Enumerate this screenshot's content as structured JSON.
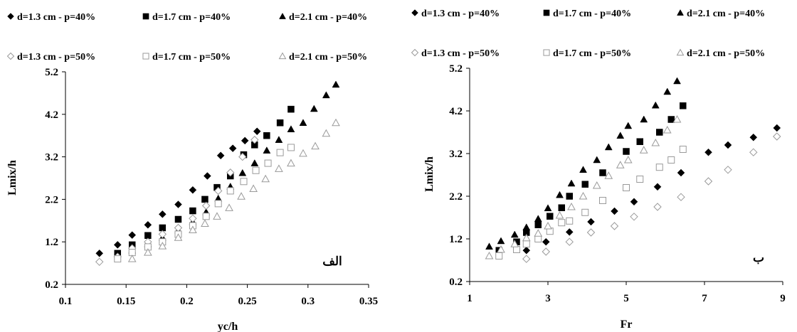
{
  "chart_data": [
    {
      "type": "scatter",
      "title": "",
      "panel_label": "الف",
      "xlabel": "yc/h",
      "ylabel": "Lmix/h",
      "xlim": [
        0.1,
        0.35
      ],
      "ylim": [
        0.2,
        5.2
      ],
      "xticks": [
        "0.1",
        "0.15",
        "0.2",
        "0.25",
        "0.3",
        "0.35"
      ],
      "yticks": [
        "0.2",
        "1.2",
        "2.2",
        "3.2",
        "4.2",
        "5.2"
      ],
      "grid": false,
      "legend": "top",
      "series": [
        {
          "name": "d=1.3 cm - p=40%",
          "marker": "diamond",
          "fill": "filled",
          "points": [
            [
              0.128,
              0.93
            ],
            [
              0.143,
              1.13
            ],
            [
              0.155,
              1.36
            ],
            [
              0.168,
              1.6
            ],
            [
              0.18,
              1.85
            ],
            [
              0.193,
              2.08
            ],
            [
              0.205,
              2.42
            ],
            [
              0.217,
              2.75
            ],
            [
              0.228,
              3.23
            ],
            [
              0.238,
              3.4
            ],
            [
              0.248,
              3.58
            ],
            [
              0.258,
              3.8
            ]
          ]
        },
        {
          "name": "d=1.7 cm - p=40%",
          "marker": "square",
          "fill": "filled",
          "points": [
            [
              0.143,
              0.93
            ],
            [
              0.155,
              1.13
            ],
            [
              0.168,
              1.35
            ],
            [
              0.18,
              1.53
            ],
            [
              0.193,
              1.73
            ],
            [
              0.205,
              1.93
            ],
            [
              0.215,
              2.2
            ],
            [
              0.225,
              2.48
            ],
            [
              0.236,
              2.75
            ],
            [
              0.247,
              3.25
            ],
            [
              0.256,
              3.48
            ],
            [
              0.266,
              3.7
            ],
            [
              0.277,
              4.0
            ],
            [
              0.286,
              4.32
            ]
          ]
        },
        {
          "name": "d=2.1 cm - p=40%",
          "marker": "triangle",
          "fill": "filled",
          "points": [
            [
              0.155,
              1.0
            ],
            [
              0.168,
              1.15
            ],
            [
              0.18,
              1.3
            ],
            [
              0.193,
              1.47
            ],
            [
              0.205,
              1.67
            ],
            [
              0.216,
              1.9
            ],
            [
              0.226,
              2.22
            ],
            [
              0.236,
              2.5
            ],
            [
              0.246,
              2.82
            ],
            [
              0.256,
              3.05
            ],
            [
              0.266,
              3.35
            ],
            [
              0.276,
              3.6
            ],
            [
              0.286,
              3.85
            ],
            [
              0.296,
              4.0
            ],
            [
              0.305,
              4.33
            ],
            [
              0.315,
              4.65
            ],
            [
              0.323,
              4.9
            ]
          ]
        },
        {
          "name": "d=1.3 cm - p=50%",
          "marker": "diamond",
          "fill": "hollow",
          "points": [
            [
              0.128,
              0.73
            ],
            [
              0.143,
              0.85
            ],
            [
              0.155,
              1.05
            ],
            [
              0.168,
              1.2
            ],
            [
              0.18,
              1.38
            ],
            [
              0.193,
              1.53
            ],
            [
              0.205,
              1.75
            ],
            [
              0.216,
              2.05
            ],
            [
              0.226,
              2.4
            ],
            [
              0.236,
              2.83
            ],
            [
              0.246,
              3.2
            ],
            [
              0.256,
              3.6
            ]
          ]
        },
        {
          "name": "d=1.7 cm - p=50%",
          "marker": "square",
          "fill": "hollow",
          "points": [
            [
              0.143,
              0.8
            ],
            [
              0.155,
              0.95
            ],
            [
              0.168,
              1.08
            ],
            [
              0.18,
              1.2
            ],
            [
              0.193,
              1.38
            ],
            [
              0.205,
              1.58
            ],
            [
              0.216,
              1.8
            ],
            [
              0.226,
              2.1
            ],
            [
              0.236,
              2.4
            ],
            [
              0.247,
              2.62
            ],
            [
              0.257,
              2.88
            ],
            [
              0.267,
              3.05
            ],
            [
              0.277,
              3.3
            ],
            [
              0.286,
              3.42
            ]
          ]
        },
        {
          "name": "d=2.1 cm - p=50%",
          "marker": "triangle",
          "fill": "hollow",
          "points": [
            [
              0.155,
              0.8
            ],
            [
              0.168,
              0.95
            ],
            [
              0.18,
              1.1
            ],
            [
              0.193,
              1.3
            ],
            [
              0.205,
              1.48
            ],
            [
              0.215,
              1.63
            ],
            [
              0.225,
              1.8
            ],
            [
              0.235,
              2.0
            ],
            [
              0.245,
              2.27
            ],
            [
              0.255,
              2.45
            ],
            [
              0.265,
              2.68
            ],
            [
              0.276,
              2.92
            ],
            [
              0.286,
              3.05
            ],
            [
              0.296,
              3.28
            ],
            [
              0.306,
              3.45
            ],
            [
              0.315,
              3.75
            ],
            [
              0.323,
              4.0
            ]
          ]
        }
      ]
    },
    {
      "type": "scatter",
      "title": "",
      "panel_label": "ب",
      "xlabel": "Fr",
      "ylabel": "Lmix/h",
      "xlim": [
        1,
        9
      ],
      "ylim": [
        0.2,
        5.2
      ],
      "xticks": [
        "1",
        "3",
        "5",
        "7",
        "9"
      ],
      "yticks": [
        "0.2",
        "1.2",
        "2.2",
        "3.2",
        "4.2",
        "5.2"
      ],
      "grid": false,
      "legend": "top",
      "series": [
        {
          "name": "d=1.3 cm - p=40%",
          "marker": "diamond",
          "fill": "filled",
          "points": [
            [
              2.45,
              0.93
            ],
            [
              2.95,
              1.13
            ],
            [
              3.55,
              1.36
            ],
            [
              4.1,
              1.6
            ],
            [
              4.7,
              1.85
            ],
            [
              5.2,
              2.07
            ],
            [
              5.8,
              2.42
            ],
            [
              6.4,
              2.75
            ],
            [
              7.1,
              3.23
            ],
            [
              7.6,
              3.4
            ],
            [
              8.25,
              3.58
            ],
            [
              8.85,
              3.8
            ]
          ]
        },
        {
          "name": "d=1.7 cm - p=40%",
          "marker": "square",
          "fill": "filled",
          "points": [
            [
              1.75,
              0.93
            ],
            [
              2.2,
              1.13
            ],
            [
              2.45,
              1.35
            ],
            [
              2.75,
              1.53
            ],
            [
              3.05,
              1.73
            ],
            [
              3.35,
              1.93
            ],
            [
              3.55,
              2.2
            ],
            [
              3.95,
              2.48
            ],
            [
              4.4,
              2.75
            ],
            [
              5.0,
              3.25
            ],
            [
              5.35,
              3.48
            ],
            [
              5.85,
              3.7
            ],
            [
              6.15,
              4.0
            ],
            [
              6.45,
              4.32
            ]
          ]
        },
        {
          "name": "d=2.1 cm - p=40%",
          "marker": "triangle",
          "fill": "filled",
          "points": [
            [
              1.5,
              1.02
            ],
            [
              1.8,
              1.15
            ],
            [
              2.15,
              1.3
            ],
            [
              2.45,
              1.47
            ],
            [
              2.75,
              1.67
            ],
            [
              3.0,
              1.92
            ],
            [
              3.3,
              2.23
            ],
            [
              3.6,
              2.5
            ],
            [
              3.9,
              2.82
            ],
            [
              4.25,
              3.05
            ],
            [
              4.55,
              3.35
            ],
            [
              4.85,
              3.62
            ],
            [
              5.05,
              3.85
            ],
            [
              5.45,
              4.0
            ],
            [
              5.75,
              4.33
            ],
            [
              6.05,
              4.65
            ],
            [
              6.3,
              4.9
            ]
          ]
        },
        {
          "name": "d=1.3 cm - p=50%",
          "marker": "diamond",
          "fill": "hollow",
          "points": [
            [
              2.45,
              0.73
            ],
            [
              2.95,
              0.9
            ],
            [
              3.55,
              1.13
            ],
            [
              4.1,
              1.35
            ],
            [
              4.7,
              1.5
            ],
            [
              5.2,
              1.72
            ],
            [
              5.8,
              1.95
            ],
            [
              6.4,
              2.18
            ],
            [
              7.1,
              2.55
            ],
            [
              7.6,
              2.82
            ],
            [
              8.25,
              3.23
            ],
            [
              8.85,
              3.6
            ]
          ]
        },
        {
          "name": "d=1.7 cm - p=50%",
          "marker": "square",
          "fill": "hollow",
          "points": [
            [
              1.75,
              0.8
            ],
            [
              2.2,
              0.95
            ],
            [
              2.45,
              1.08
            ],
            [
              2.75,
              1.2
            ],
            [
              3.05,
              1.38
            ],
            [
              3.35,
              1.58
            ],
            [
              3.55,
              1.62
            ],
            [
              3.95,
              1.82
            ],
            [
              4.4,
              2.1
            ],
            [
              5.0,
              2.4
            ],
            [
              5.35,
              2.6
            ],
            [
              5.85,
              2.88
            ],
            [
              6.15,
              3.05
            ],
            [
              6.45,
              3.3
            ]
          ]
        },
        {
          "name": "d=2.1 cm - p=50%",
          "marker": "triangle",
          "fill": "hollow",
          "points": [
            [
              1.5,
              0.8
            ],
            [
              1.8,
              0.95
            ],
            [
              2.15,
              1.08
            ],
            [
              2.45,
              1.22
            ],
            [
              2.75,
              1.33
            ],
            [
              3.0,
              1.5
            ],
            [
              3.3,
              1.75
            ],
            [
              3.6,
              1.95
            ],
            [
              3.9,
              2.2
            ],
            [
              4.25,
              2.45
            ],
            [
              4.55,
              2.68
            ],
            [
              4.85,
              2.93
            ],
            [
              5.05,
              3.05
            ],
            [
              5.45,
              3.28
            ],
            [
              5.75,
              3.45
            ],
            [
              6.05,
              3.75
            ],
            [
              6.3,
              4.0
            ]
          ]
        }
      ]
    }
  ]
}
